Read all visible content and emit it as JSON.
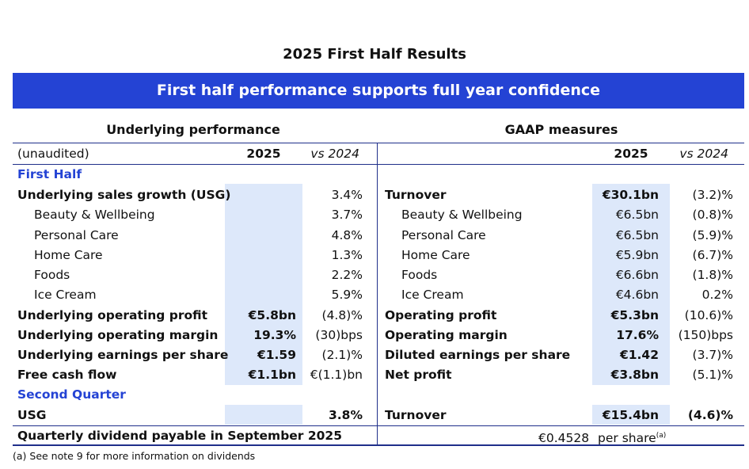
{
  "title": "2025 First Half Results",
  "banner": "First half performance supports full year confidence",
  "left_header": "Underlying performance",
  "right_header": "GAAP measures",
  "col_headers": {
    "unaudited": "(unaudited)",
    "year": "2025",
    "vs": "vs 2024"
  },
  "first_half_label": "First Half",
  "left_rows": [
    {
      "label": "Underlying sales growth (USG)",
      "v2025": "",
      "vs": "3.4%"
    },
    {
      "label": "Beauty & Wellbeing",
      "v2025": "",
      "vs": "3.7%"
    },
    {
      "label": "Personal Care",
      "v2025": "",
      "vs": "4.8%"
    },
    {
      "label": "Home Care",
      "v2025": "",
      "vs": "1.3%"
    },
    {
      "label": "Foods",
      "v2025": "",
      "vs": "2.2%"
    },
    {
      "label": "Ice Cream",
      "v2025": "",
      "vs": "5.9%"
    },
    {
      "label": "Underlying operating profit",
      "v2025": "€5.8bn",
      "vs": "(4.8)%"
    },
    {
      "label": "Underlying operating margin",
      "v2025": "19.3%",
      "vs": "(30)bps"
    },
    {
      "label": "Underlying earnings per share",
      "v2025": "€1.59",
      "vs": "(2.1)%"
    },
    {
      "label": "Free cash flow",
      "v2025": "€1.1bn",
      "vs": "€(1.1)bn"
    }
  ],
  "right_rows": [
    {
      "label": "Turnover",
      "v2025": "€30.1bn",
      "vs": "(3.2)%"
    },
    {
      "label": "Beauty & Wellbeing",
      "v2025": "€6.5bn",
      "vs": "(0.8)%"
    },
    {
      "label": "Personal Care",
      "v2025": "€6.5bn",
      "vs": "(5.9)%"
    },
    {
      "label": "Home Care",
      "v2025": "€5.9bn",
      "vs": "(6.7)%"
    },
    {
      "label": "Foods",
      "v2025": "€6.6bn",
      "vs": "(1.8)%"
    },
    {
      "label": "Ice Cream",
      "v2025": "€4.6bn",
      "vs": "0.2%"
    },
    {
      "label": "Operating profit",
      "v2025": "€5.3bn",
      "vs": "(10.6)%"
    },
    {
      "label": "Operating margin",
      "v2025": "17.6%",
      "vs": "(150)bps"
    },
    {
      "label": "Diluted earnings per share",
      "v2025": "€1.42",
      "vs": "(3.7)%"
    },
    {
      "label": "Net profit",
      "v2025": "€3.8bn",
      "vs": "(5.1)%"
    }
  ],
  "second_quarter_label": "Second Quarter",
  "q2_left": {
    "label": "USG",
    "v2025": "",
    "vs": "3.8%"
  },
  "q2_right": {
    "label": "Turnover",
    "v2025": "€15.4bn",
    "vs": "(4.6)%"
  },
  "dividend": {
    "label": "Quarterly dividend payable in September 2025",
    "value": "€0.4528",
    "unit": "per share",
    "note_mark": "(a)"
  },
  "footnote": "(a) See note 9 for more information on dividends"
}
